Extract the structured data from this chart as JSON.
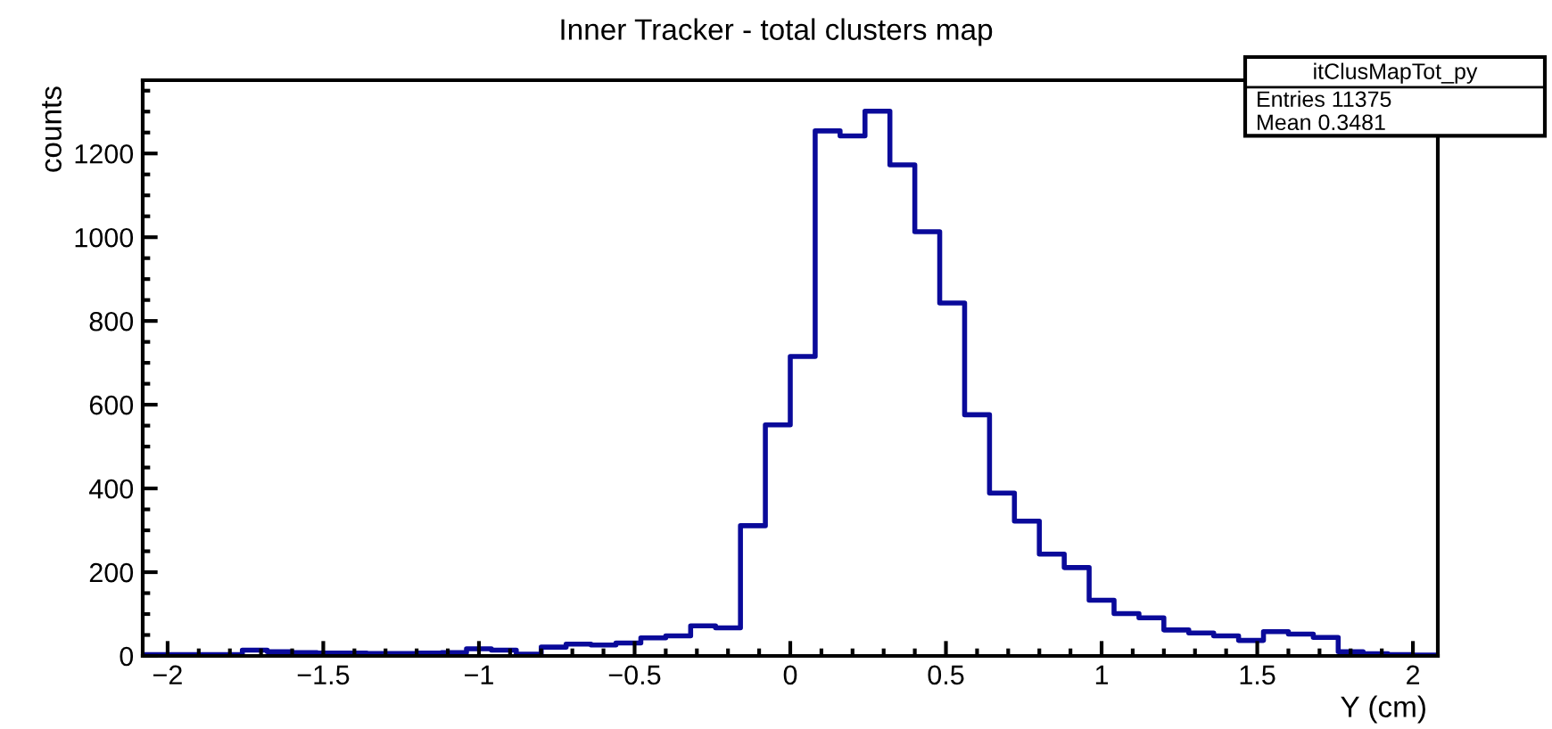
{
  "chart_data": {
    "type": "histogram",
    "title": "Inner Tracker - total clusters map",
    "xlabel": "Y (cm)",
    "ylabel": "counts",
    "color": "#0a0a9a",
    "bins": [
      -2.08,
      -2.0,
      -1.92,
      -1.84,
      -1.76,
      -1.68,
      -1.6,
      -1.52,
      -1.44,
      -1.36,
      -1.28,
      -1.2,
      -1.12,
      -1.04,
      -0.96,
      -0.88,
      -0.8,
      -0.72,
      -0.64,
      -0.56,
      -0.48,
      -0.4,
      -0.32,
      -0.24,
      -0.16,
      -0.08,
      0,
      0.08,
      0.16,
      0.24,
      0.32,
      0.4,
      0.48,
      0.56,
      0.64,
      0.72,
      0.8,
      0.88,
      0.96,
      1.04,
      1.12,
      1.2,
      1.28,
      1.36,
      1.44,
      1.52,
      1.6,
      1.68,
      1.76,
      1.84,
      1.92,
      2.0,
      2.08
    ],
    "values": [
      3,
      3,
      3,
      3,
      14,
      10,
      8,
      7,
      7,
      6,
      6,
      7,
      8,
      17,
      14,
      4,
      21,
      28,
      26,
      31,
      43,
      48,
      72,
      67,
      311,
      552,
      715,
      1254,
      1242,
      1301,
      1173,
      1013,
      843,
      576,
      389,
      322,
      243,
      211,
      133,
      101,
      91,
      62,
      55,
      48,
      37,
      58,
      52,
      44,
      10,
      5,
      3,
      2
    ],
    "xlim": [
      -2.08,
      2.08
    ],
    "ylim": [
      0,
      1375
    ],
    "xticks": [
      {
        "value": -2,
        "label": "−2"
      },
      {
        "value": -1.5,
        "label": "−1.5"
      },
      {
        "value": -1,
        "label": "−1"
      },
      {
        "value": -0.5,
        "label": "−0.5"
      },
      0,
      0.5,
      1,
      1.5,
      2
    ],
    "yticks": [
      0,
      200,
      400,
      600,
      800,
      1000,
      1200
    ],
    "grid": false,
    "annotations": [
      "itClusMapTot_py",
      "Entries 11375",
      "Mean 0.3481"
    ]
  }
}
